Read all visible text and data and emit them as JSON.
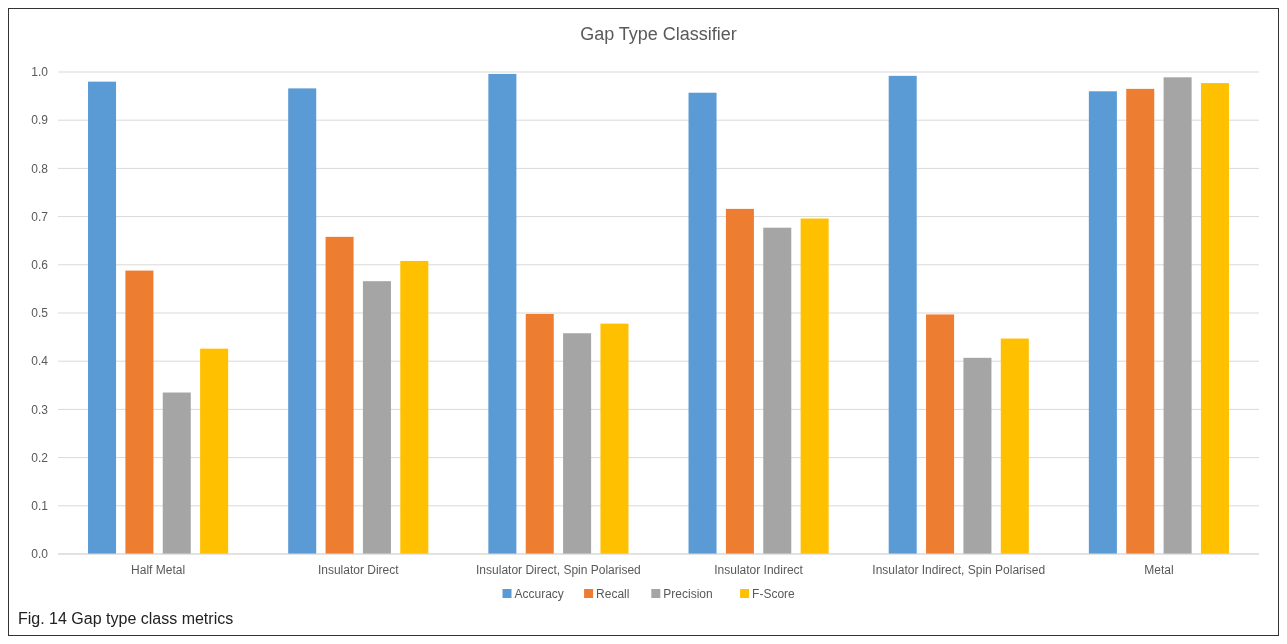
{
  "chart_data": {
    "type": "bar",
    "title": "Gap Type Classifier",
    "categories": [
      "Half Metal",
      "Insulator Direct",
      "Insulator Direct, Spin Polarised",
      "Insulator Indirect",
      "Insulator Indirect, Spin Polarised",
      "Metal"
    ],
    "series": [
      {
        "name": "Accuracy",
        "color": "#5b9bd5",
        "values": [
          0.98,
          0.966,
          0.996,
          0.957,
          0.992,
          0.96
        ]
      },
      {
        "name": "Recall",
        "color": "#ed7d31",
        "values": [
          0.588,
          0.658,
          0.498,
          0.716,
          0.497,
          0.965
        ]
      },
      {
        "name": "Precision",
        "color": "#a5a5a5",
        "values": [
          0.335,
          0.566,
          0.458,
          0.677,
          0.407,
          0.989
        ]
      },
      {
        "name": "F-Score",
        "color": "#ffc000",
        "values": [
          0.426,
          0.608,
          0.478,
          0.696,
          0.447,
          0.977
        ]
      }
    ],
    "ylim": [
      0,
      1
    ],
    "yticks": [
      {
        "value": 0,
        "label": "0.0"
      },
      {
        "value": 0.1,
        "label": "0.1"
      },
      {
        "value": 0.2,
        "label": "0.2"
      },
      {
        "value": 0.3,
        "label": "0.3"
      },
      {
        "value": 0.4,
        "label": "0.4"
      },
      {
        "value": 0.5,
        "label": "0.5"
      },
      {
        "value": 0.6,
        "label": "0.6"
      },
      {
        "value": 0.7,
        "label": "0.7"
      },
      {
        "value": 0.8,
        "label": "0.8"
      },
      {
        "value": 0.9,
        "label": "0.9"
      },
      {
        "value": 1,
        "label": "1.0"
      }
    ],
    "grid": "y",
    "legend": "bottom",
    "annotations": [
      "Fig. 14  Gap type class metrics"
    ]
  }
}
